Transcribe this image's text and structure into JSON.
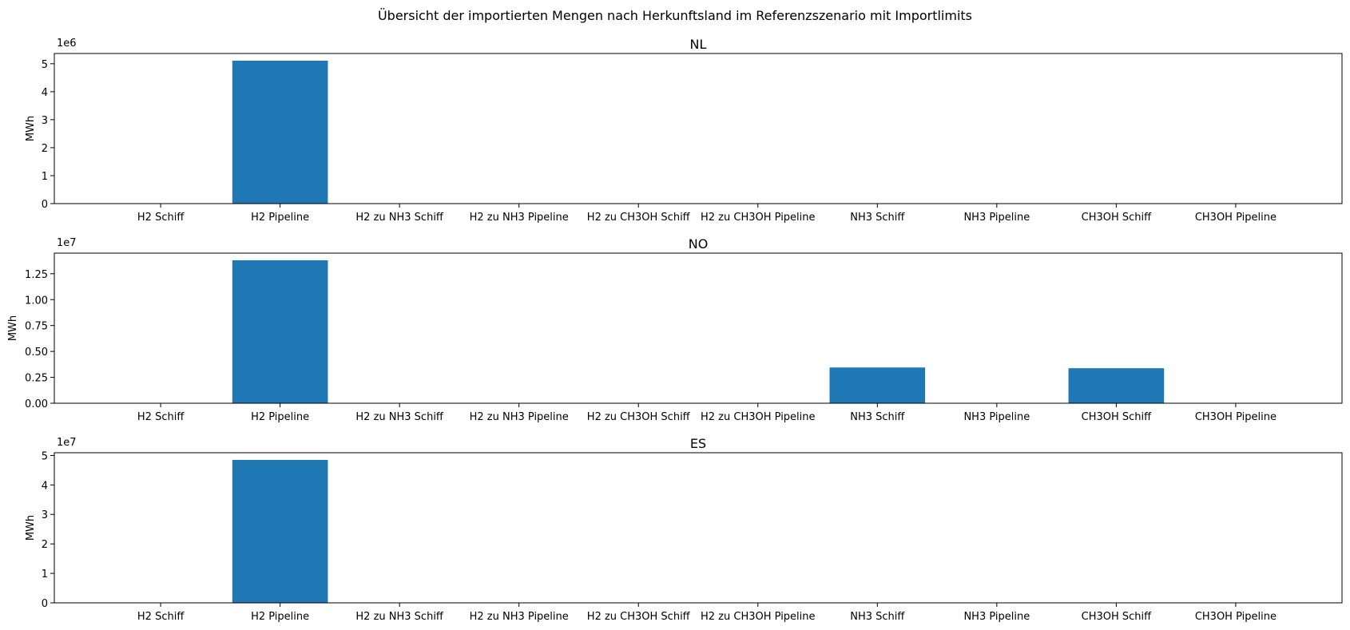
{
  "figure": {
    "suptitle": "Übersicht der importierten Mengen nach Herkunftsland im Referenzszenario mit Importlimits"
  },
  "colors": {
    "bar": "#1f77b4",
    "axis": "#000000",
    "background": "#ffffff"
  },
  "chart_data": [
    {
      "type": "bar",
      "title": "NL",
      "ylabel": "MWh",
      "offset_label": "1e6",
      "categories": [
        "H2 Schiff",
        "H2 Pipeline",
        "H2 zu NH3 Schiff",
        "H2 zu NH3 Pipeline",
        "H2 zu CH3OH Schiff",
        "H2 zu CH3OH Pipeline",
        "NH3 Schiff",
        "NH3 Pipeline",
        "CH3OH Schiff",
        "CH3OH Pipeline"
      ],
      "values": [
        0,
        5110000,
        0,
        0,
        0,
        0,
        0,
        0,
        0,
        0
      ],
      "ylim": [
        0,
        5365500
      ],
      "yticks": [
        0,
        1000000,
        2000000,
        3000000,
        4000000,
        5000000
      ],
      "ytick_labels": [
        "0",
        "1",
        "2",
        "3",
        "4",
        "5"
      ],
      "grid": false
    },
    {
      "type": "bar",
      "title": "NO",
      "ylabel": "MWh",
      "offset_label": "1e7",
      "categories": [
        "H2 Schiff",
        "H2 Pipeline",
        "H2 zu NH3 Schiff",
        "H2 zu NH3 Pipeline",
        "H2 zu CH3OH Schiff",
        "H2 zu CH3OH Pipeline",
        "NH3 Schiff",
        "NH3 Pipeline",
        "CH3OH Schiff",
        "CH3OH Pipeline"
      ],
      "values": [
        0,
        13800000,
        0,
        0,
        0,
        0,
        3450000,
        0,
        3380000,
        0
      ],
      "ylim": [
        0,
        14490000
      ],
      "yticks": [
        0,
        2500000,
        5000000,
        7500000,
        10000000,
        12500000
      ],
      "ytick_labels": [
        "0.00",
        "0.25",
        "0.50",
        "0.75",
        "1.00",
        "1.25"
      ],
      "grid": false
    },
    {
      "type": "bar",
      "title": "ES",
      "ylabel": "MWh",
      "offset_label": "1e7",
      "categories": [
        "H2 Schiff",
        "H2 Pipeline",
        "H2 zu NH3 Schiff",
        "H2 zu NH3 Pipeline",
        "H2 zu CH3OH Schiff",
        "H2 zu CH3OH Pipeline",
        "NH3 Schiff",
        "NH3 Pipeline",
        "CH3OH Schiff",
        "CH3OH Pipeline"
      ],
      "values": [
        0,
        48500000,
        0,
        0,
        0,
        0,
        0,
        0,
        0,
        0
      ],
      "ylim": [
        0,
        50925000
      ],
      "yticks": [
        0,
        10000000,
        20000000,
        30000000,
        40000000,
        50000000
      ],
      "ytick_labels": [
        "0",
        "1",
        "2",
        "3",
        "4",
        "5"
      ],
      "grid": false
    }
  ]
}
